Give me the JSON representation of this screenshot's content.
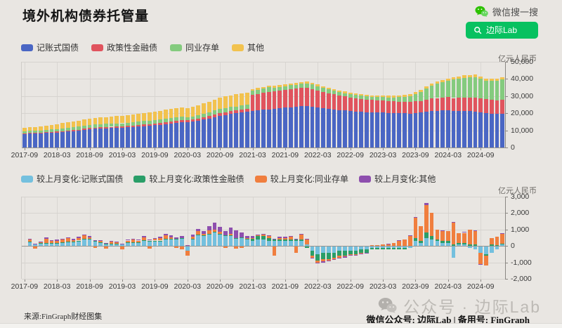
{
  "page": {
    "background": "#e9e6e2"
  },
  "header": {
    "title": "境外机构债券托管量",
    "wechat_search_label": "微信搜一搜",
    "search_button_label": "边际Lab"
  },
  "footer": {
    "source": "来源:FinGraph财经图集",
    "watermark_text": "公众号 · 边际Lab",
    "account_line": "微信公众号: 边际Lab | 备用号: FinGraph"
  },
  "chart_data": [
    {
      "type": "bar",
      "stacked": true,
      "title": "境外机构债券托管量",
      "unit": "亿元人民币",
      "ylim": [
        0,
        50000
      ],
      "y_ticks": [
        {
          "value": 0,
          "label": "0"
        },
        {
          "value": 10000,
          "label": "10,000"
        },
        {
          "value": 20000,
          "label": "20,000"
        },
        {
          "value": 30000,
          "label": "30,000"
        },
        {
          "value": 40000,
          "label": "40,000"
        },
        {
          "value": 50000,
          "label": "50,000"
        }
      ],
      "x_tick_every": 6,
      "x_tick_labels": [
        "2017-09",
        "2018-03",
        "2018-09",
        "2019-03",
        "2019-09",
        "2020-03",
        "2020-09",
        "2021-03",
        "2021-09",
        "2022-03",
        "2022-09",
        "2023-03",
        "2023-09",
        "2024-03",
        "2024-09"
      ],
      "bar_count": 89,
      "series": [
        {
          "name": "记账式国债",
          "color": "#4a66c4",
          "values": [
            7800,
            8050,
            8150,
            8300,
            8480,
            8650,
            8800,
            9000,
            9250,
            9500,
            9800,
            10200,
            10600,
            10900,
            11100,
            11200,
            11300,
            11400,
            11500,
            11700,
            11900,
            12100,
            12400,
            12700,
            13000,
            13300,
            13700,
            14100,
            14500,
            14950,
            14650,
            15050,
            15700,
            16300,
            17000,
            17750,
            18450,
            19050,
            19600,
            20000,
            20500,
            20900,
            21200,
            21600,
            22000,
            22300,
            22600,
            22900,
            23200,
            23500,
            23800,
            24100,
            24200,
            23900,
            23400,
            23000,
            22600,
            22200,
            21900,
            21600,
            21300,
            21000,
            20800,
            20600,
            20500,
            20400,
            20300,
            20200,
            20100,
            20000,
            19900,
            19800,
            20100,
            20300,
            20800,
            21200,
            21500,
            21700,
            21900,
            21200,
            21300,
            21400,
            21300,
            21100,
            20700,
            20200,
            19800,
            19600,
            19700
          ]
        },
        {
          "name": "政策性金融债",
          "color": "#e0545e",
          "values": [
            400,
            420,
            430,
            450,
            480,
            500,
            530,
            550,
            580,
            610,
            650,
            690,
            720,
            740,
            770,
            790,
            800,
            830,
            850,
            880,
            910,
            940,
            980,
            1010,
            1040,
            1070,
            1110,
            1150,
            1180,
            1220,
            1240,
            1270,
            1300,
            1340,
            1390,
            1440,
            1490,
            1540,
            1580,
            1620,
            1650,
            1660,
            9500,
            9700,
            9900,
            10100,
            10200,
            10300,
            10400,
            10500,
            10600,
            10700,
            10600,
            10300,
            9900,
            9500,
            9100,
            8800,
            8500,
            8200,
            8000,
            7800,
            7600,
            7400,
            7300,
            7200,
            7100,
            7000,
            6900,
            6800,
            6700,
            6700,
            6800,
            6900,
            7100,
            7300,
            7400,
            7500,
            7600,
            7700,
            7800,
            7900,
            8000,
            8100,
            8100,
            8000,
            7900,
            7950,
            8000
          ]
        },
        {
          "name": "同业存单",
          "color": "#84cb7e",
          "values": [
            1150,
            1200,
            1100,
            1150,
            1250,
            1350,
            1450,
            1550,
            1650,
            1750,
            1800,
            1850,
            1850,
            1800,
            1850,
            1800,
            1850,
            1900,
            1800,
            1850,
            1900,
            1950,
            2000,
            1900,
            1950,
            2000,
            2100,
            2150,
            2100,
            1950,
            1700,
            1850,
            2000,
            2100,
            2250,
            2400,
            2450,
            2400,
            2450,
            2350,
            2300,
            2350,
            2400,
            2450,
            2550,
            2650,
            2050,
            2150,
            2250,
            2400,
            2000,
            2300,
            2600,
            2500,
            2400,
            2250,
            2150,
            2050,
            1950,
            1900,
            1850,
            1800,
            1750,
            1750,
            1800,
            1850,
            1950,
            2050,
            2250,
            2550,
            2950,
            3550,
            4350,
            5150,
            6450,
            7650,
            8250,
            8850,
            9450,
            10750,
            11150,
            11450,
            11750,
            11950,
            11250,
            10650,
            11050,
            11550,
            12150
          ]
        },
        {
          "name": "其他",
          "color": "#f2c24e",
          "values": [
            2200,
            2300,
            2400,
            2500,
            2650,
            2800,
            2950,
            3100,
            3250,
            3400,
            3500,
            3600,
            3700,
            3800,
            3900,
            4000,
            4100,
            4200,
            4300,
            4400,
            4500,
            4600,
            4700,
            4800,
            4900,
            5000,
            5100,
            5200,
            5300,
            5400,
            5450,
            5600,
            5800,
            6000,
            6200,
            6400,
            6600,
            6800,
            6900,
            7000,
            7000,
            7050,
            1000,
            1000,
            1000,
            1050,
            1050,
            1100,
            1100,
            1100,
            1150,
            1150,
            1150,
            1100,
            1100,
            1050,
            1050,
            1000,
            1000,
            1000,
            950,
            950,
            900,
            900,
            900,
            900,
            900,
            950,
            950,
            1000,
            1000,
            1050,
            1100,
            1100,
            1150,
            1200,
            1200,
            1250,
            1250,
            1300,
            1300,
            1350,
            1350,
            1400,
            1350,
            1300,
            1250,
            1200,
            1200
          ]
        }
      ]
    },
    {
      "type": "bar",
      "stacked": true,
      "unit": "亿元人民币",
      "ylim": [
        -2000,
        3000
      ],
      "y_ticks": [
        {
          "value": 3000,
          "label": "3,000"
        },
        {
          "value": 2000,
          "label": "2,000"
        },
        {
          "value": 1000,
          "label": "1,000"
        },
        {
          "value": 0,
          "label": "0"
        },
        {
          "value": -1000,
          "label": "-1,000"
        },
        {
          "value": -2000,
          "label": "-2,000"
        }
      ],
      "x_tick_every": 6,
      "x_tick_labels": [
        "2017-09",
        "2018-03",
        "2018-09",
        "2019-03",
        "2019-09",
        "2020-03",
        "2020-09",
        "2021-03",
        "2021-09",
        "2022-03",
        "2022-09",
        "2023-03",
        "2023-09",
        "2024-03",
        "2024-09"
      ],
      "bar_count": 89,
      "series": [
        {
          "name": "较上月变化:记账式国债",
          "color": "#74c0de",
          "values": [
            0,
            250,
            100,
            150,
            180,
            170,
            150,
            200,
            250,
            250,
            300,
            400,
            400,
            300,
            200,
            100,
            100,
            100,
            100,
            200,
            200,
            200,
            300,
            300,
            300,
            300,
            400,
            400,
            400,
            450,
            -300,
            400,
            650,
            600,
            700,
            800,
            700,
            600,
            600,
            450,
            500,
            400,
            300,
            400,
            400,
            300,
            300,
            300,
            300,
            300,
            300,
            300,
            100,
            -300,
            -500,
            -400,
            -400,
            -400,
            -300,
            -300,
            -300,
            -300,
            -200,
            -200,
            -100,
            -100,
            -100,
            -100,
            -100,
            -100,
            -100,
            -100,
            300,
            200,
            500,
            400,
            300,
            200,
            200,
            -700,
            100,
            100,
            -100,
            -200,
            -400,
            -500,
            -400,
            -200,
            100
          ]
        },
        {
          "name": "较上月变化:政策性金融债",
          "color": "#2a9e68",
          "values": [
            0,
            20,
            20,
            20,
            20,
            20,
            20,
            20,
            20,
            20,
            30,
            30,
            30,
            20,
            20,
            20,
            30,
            30,
            20,
            30,
            30,
            30,
            40,
            30,
            30,
            30,
            40,
            40,
            40,
            40,
            20,
            30,
            40,
            40,
            50,
            50,
            50,
            50,
            40,
            40,
            30,
            20,
            150,
            200,
            200,
            200,
            100,
            100,
            100,
            100,
            100,
            100,
            -100,
            -300,
            -400,
            -400,
            -400,
            -300,
            -300,
            -300,
            -200,
            -200,
            -200,
            -200,
            -100,
            -100,
            -100,
            -100,
            -100,
            -100,
            -100,
            0,
            200,
            100,
            300,
            200,
            100,
            100,
            100,
            100,
            100,
            100,
            100,
            100,
            0,
            -100,
            100,
            50,
            50
          ]
        },
        {
          "name": "较上月变化:同业存单",
          "color": "#f07e3e",
          "values": [
            0,
            120,
            -150,
            80,
            250,
            100,
            150,
            180,
            200,
            100,
            150,
            200,
            100,
            -100,
            100,
            -150,
            150,
            100,
            -200,
            100,
            150,
            100,
            200,
            -150,
            100,
            150,
            200,
            100,
            -100,
            -200,
            -300,
            150,
            200,
            100,
            200,
            150,
            100,
            -100,
            100,
            -150,
            -100,
            50,
            50,
            50,
            100,
            100,
            -600,
            100,
            100,
            150,
            -400,
            300,
            300,
            -100,
            -100,
            -150,
            -100,
            -100,
            -100,
            -50,
            -50,
            -50,
            -50,
            0,
            50,
            50,
            100,
            100,
            200,
            300,
            400,
            600,
            1200,
            900,
            1700,
            1400,
            600,
            600,
            600,
            1300,
            600,
            600,
            900,
            800,
            -700,
            -600,
            400,
            500,
            600
          ]
        },
        {
          "name": "较上月变化:其他",
          "color": "#8e4fae",
          "values": [
            0,
            30,
            20,
            30,
            60,
            40,
            60,
            50,
            50,
            60,
            80,
            80,
            60,
            40,
            50,
            40,
            50,
            50,
            30,
            50,
            60,
            60,
            70,
            50,
            60,
            80,
            100,
            100,
            100,
            100,
            50,
            100,
            150,
            150,
            250,
            400,
            300,
            250,
            400,
            450,
            300,
            150,
            100,
            50,
            50,
            50,
            50,
            50,
            50,
            50,
            50,
            50,
            50,
            -50,
            -50,
            -50,
            -50,
            -50,
            -50,
            -50,
            -50,
            -50,
            -50,
            -50,
            0,
            0,
            0,
            50,
            0,
            50,
            0,
            50,
            50,
            0,
            100,
            0,
            0,
            50,
            0,
            50,
            0,
            50,
            0,
            50,
            -50,
            0,
            0,
            0,
            50
          ]
        }
      ]
    }
  ]
}
